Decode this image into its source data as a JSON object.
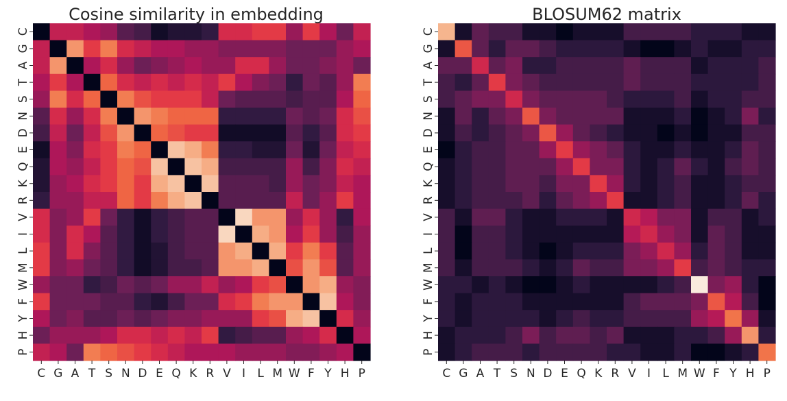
{
  "chart_data": [
    {
      "type": "heatmap",
      "title": "Cosine similarity in embedding",
      "xlabel": "",
      "ylabel": "",
      "x_labels": [
        "C",
        "G",
        "A",
        "T",
        "S",
        "N",
        "D",
        "E",
        "Q",
        "K",
        "R",
        "V",
        "I",
        "L",
        "M",
        "W",
        "F",
        "Y",
        "H",
        "P"
      ],
      "y_labels": [
        "C",
        "G",
        "A",
        "T",
        "S",
        "N",
        "D",
        "E",
        "Q",
        "K",
        "R",
        "V",
        "I",
        "L",
        "M",
        "W",
        "F",
        "Y",
        "H",
        "P"
      ],
      "colormap": "rocket",
      "color_range": [
        0,
        1
      ],
      "values": [
        [
          0.0,
          0.5,
          0.5,
          0.45,
          0.4,
          0.25,
          0.2,
          0.05,
          0.1,
          0.1,
          0.15,
          0.55,
          0.55,
          0.6,
          0.6,
          0.4,
          0.6,
          0.45,
          0.3,
          0.5
        ],
        [
          0.5,
          0.0,
          0.8,
          0.6,
          0.75,
          0.55,
          0.5,
          0.45,
          0.45,
          0.4,
          0.4,
          0.35,
          0.35,
          0.35,
          0.35,
          0.3,
          0.3,
          0.3,
          0.4,
          0.45
        ],
        [
          0.5,
          0.8,
          0.0,
          0.45,
          0.55,
          0.4,
          0.3,
          0.35,
          0.4,
          0.45,
          0.4,
          0.4,
          0.55,
          0.55,
          0.4,
          0.3,
          0.3,
          0.35,
          0.4,
          0.3
        ],
        [
          0.45,
          0.6,
          0.45,
          0.0,
          0.7,
          0.55,
          0.5,
          0.55,
          0.5,
          0.55,
          0.5,
          0.6,
          0.45,
          0.35,
          0.3,
          0.15,
          0.3,
          0.25,
          0.4,
          0.75
        ],
        [
          0.4,
          0.75,
          0.55,
          0.7,
          0.0,
          0.75,
          0.65,
          0.6,
          0.6,
          0.6,
          0.5,
          0.3,
          0.25,
          0.25,
          0.25,
          0.2,
          0.25,
          0.25,
          0.45,
          0.7
        ],
        [
          0.25,
          0.55,
          0.4,
          0.55,
          0.75,
          0.0,
          0.8,
          0.75,
          0.7,
          0.7,
          0.7,
          0.15,
          0.15,
          0.15,
          0.15,
          0.3,
          0.25,
          0.3,
          0.55,
          0.65
        ],
        [
          0.2,
          0.5,
          0.3,
          0.5,
          0.65,
          0.8,
          0.0,
          0.7,
          0.65,
          0.6,
          0.6,
          0.05,
          0.05,
          0.05,
          0.05,
          0.25,
          0.15,
          0.25,
          0.55,
          0.6
        ],
        [
          0.05,
          0.45,
          0.35,
          0.55,
          0.6,
          0.75,
          0.7,
          0.0,
          0.9,
          0.85,
          0.75,
          0.15,
          0.15,
          0.1,
          0.1,
          0.3,
          0.1,
          0.3,
          0.5,
          0.55
        ],
        [
          0.1,
          0.45,
          0.4,
          0.5,
          0.6,
          0.7,
          0.65,
          0.9,
          0.0,
          0.9,
          0.85,
          0.2,
          0.2,
          0.2,
          0.2,
          0.4,
          0.2,
          0.35,
          0.55,
          0.5
        ],
        [
          0.1,
          0.4,
          0.45,
          0.55,
          0.6,
          0.7,
          0.6,
          0.85,
          0.9,
          0.0,
          0.9,
          0.25,
          0.25,
          0.25,
          0.2,
          0.4,
          0.3,
          0.35,
          0.5,
          0.45
        ],
        [
          0.15,
          0.4,
          0.4,
          0.5,
          0.5,
          0.7,
          0.6,
          0.75,
          0.85,
          0.9,
          0.0,
          0.25,
          0.25,
          0.25,
          0.25,
          0.5,
          0.3,
          0.4,
          0.6,
          0.45
        ],
        [
          0.55,
          0.35,
          0.4,
          0.6,
          0.3,
          0.15,
          0.05,
          0.15,
          0.2,
          0.25,
          0.25,
          0.0,
          0.95,
          0.8,
          0.8,
          0.4,
          0.55,
          0.4,
          0.15,
          0.45
        ],
        [
          0.55,
          0.35,
          0.55,
          0.45,
          0.25,
          0.15,
          0.05,
          0.15,
          0.2,
          0.25,
          0.25,
          0.95,
          0.0,
          0.85,
          0.8,
          0.45,
          0.6,
          0.4,
          0.2,
          0.4
        ],
        [
          0.6,
          0.35,
          0.55,
          0.35,
          0.25,
          0.15,
          0.05,
          0.1,
          0.2,
          0.25,
          0.25,
          0.8,
          0.85,
          0.0,
          0.85,
          0.6,
          0.75,
          0.6,
          0.25,
          0.4
        ],
        [
          0.6,
          0.35,
          0.4,
          0.3,
          0.25,
          0.15,
          0.05,
          0.1,
          0.2,
          0.2,
          0.25,
          0.8,
          0.8,
          0.85,
          0.0,
          0.65,
          0.8,
          0.65,
          0.25,
          0.4
        ],
        [
          0.4,
          0.3,
          0.3,
          0.15,
          0.2,
          0.3,
          0.25,
          0.3,
          0.4,
          0.4,
          0.5,
          0.4,
          0.45,
          0.6,
          0.65,
          0.0,
          0.8,
          0.85,
          0.4,
          0.35
        ],
        [
          0.6,
          0.3,
          0.3,
          0.3,
          0.25,
          0.25,
          0.15,
          0.1,
          0.2,
          0.3,
          0.3,
          0.55,
          0.6,
          0.75,
          0.8,
          0.8,
          0.0,
          0.9,
          0.45,
          0.35
        ],
        [
          0.45,
          0.3,
          0.35,
          0.25,
          0.25,
          0.3,
          0.25,
          0.3,
          0.35,
          0.35,
          0.4,
          0.4,
          0.4,
          0.6,
          0.65,
          0.85,
          0.9,
          0.0,
          0.55,
          0.4
        ],
        [
          0.3,
          0.4,
          0.4,
          0.4,
          0.45,
          0.55,
          0.55,
          0.5,
          0.55,
          0.5,
          0.6,
          0.15,
          0.2,
          0.25,
          0.25,
          0.4,
          0.45,
          0.55,
          0.0,
          0.45
        ],
        [
          0.5,
          0.45,
          0.3,
          0.75,
          0.7,
          0.65,
          0.6,
          0.55,
          0.5,
          0.45,
          0.45,
          0.45,
          0.4,
          0.4,
          0.4,
          0.35,
          0.35,
          0.4,
          0.45,
          0.0
        ]
      ]
    },
    {
      "type": "heatmap",
      "title": "BLOSUM62 matrix",
      "xlabel": "",
      "ylabel": "",
      "x_labels": [
        "C",
        "G",
        "A",
        "T",
        "S",
        "N",
        "D",
        "E",
        "Q",
        "K",
        "R",
        "V",
        "I",
        "L",
        "M",
        "W",
        "F",
        "Y",
        "H",
        "P"
      ],
      "y_labels": [
        "C",
        "G",
        "A",
        "T",
        "S",
        "N",
        "D",
        "E",
        "Q",
        "K",
        "R",
        "V",
        "I",
        "L",
        "M",
        "W",
        "F",
        "Y",
        "H",
        "P"
      ],
      "colormap": "rocket",
      "color_range": [
        -4,
        11
      ],
      "values": [
        [
          9,
          -3,
          0,
          -1,
          -1,
          -3,
          -3,
          -4,
          -3,
          -3,
          -3,
          -1,
          -1,
          -1,
          -1,
          -2,
          -2,
          -2,
          -3,
          -3
        ],
        [
          -3,
          6,
          0,
          -2,
          0,
          0,
          -1,
          -2,
          -2,
          -2,
          -2,
          -3,
          -4,
          -4,
          -3,
          -2,
          -3,
          -3,
          -2,
          -2
        ],
        [
          0,
          0,
          4,
          0,
          1,
          -2,
          -2,
          -1,
          -1,
          -1,
          -1,
          0,
          -1,
          -1,
          -1,
          -3,
          -2,
          -2,
          -2,
          -1
        ],
        [
          -1,
          -2,
          0,
          5,
          1,
          0,
          -1,
          -1,
          -1,
          -1,
          -1,
          0,
          -1,
          -1,
          -1,
          -2,
          -2,
          -2,
          -2,
          -1
        ],
        [
          -1,
          0,
          1,
          1,
          4,
          1,
          0,
          0,
          0,
          0,
          -1,
          -2,
          -2,
          -2,
          -1,
          -3,
          -2,
          -2,
          -1,
          -1
        ],
        [
          -3,
          0,
          -2,
          0,
          1,
          6,
          1,
          0,
          0,
          0,
          0,
          -3,
          -3,
          -3,
          -2,
          -4,
          -3,
          -2,
          1,
          -2
        ],
        [
          -3,
          -1,
          -2,
          -1,
          0,
          1,
          6,
          2,
          0,
          -1,
          -2,
          -3,
          -3,
          -4,
          -3,
          -4,
          -3,
          -3,
          -1,
          -1
        ],
        [
          -4,
          -2,
          -1,
          -1,
          0,
          0,
          2,
          5,
          2,
          1,
          0,
          -2,
          -3,
          -3,
          -2,
          -3,
          -3,
          -2,
          0,
          -1
        ],
        [
          -3,
          -2,
          -1,
          -1,
          0,
          0,
          0,
          2,
          5,
          1,
          1,
          -2,
          -3,
          -2,
          0,
          -2,
          -3,
          -1,
          0,
          -1
        ],
        [
          -3,
          -2,
          -1,
          -1,
          0,
          0,
          -1,
          1,
          1,
          5,
          2,
          -2,
          -3,
          -2,
          -1,
          -3,
          -3,
          -2,
          -1,
          -1
        ],
        [
          -3,
          -2,
          -1,
          -1,
          -1,
          0,
          -2,
          0,
          1,
          2,
          5,
          -3,
          -3,
          -2,
          -1,
          -3,
          -3,
          -2,
          0,
          -2
        ],
        [
          -1,
          -3,
          0,
          0,
          -2,
          -3,
          -3,
          -2,
          -2,
          -2,
          -3,
          4,
          3,
          1,
          1,
          -3,
          -1,
          -1,
          -3,
          -2
        ],
        [
          -1,
          -4,
          -1,
          -1,
          -2,
          -3,
          -3,
          -3,
          -3,
          -3,
          -3,
          3,
          4,
          2,
          1,
          -3,
          0,
          -1,
          -3,
          -3
        ],
        [
          -1,
          -4,
          -1,
          -1,
          -2,
          -3,
          -4,
          -3,
          -2,
          -2,
          -2,
          1,
          2,
          4,
          2,
          -2,
          0,
          -1,
          -3,
          -3
        ],
        [
          -1,
          -3,
          -1,
          -1,
          -1,
          -2,
          -3,
          -2,
          0,
          -1,
          -1,
          1,
          1,
          2,
          5,
          -1,
          0,
          -1,
          -2,
          -2
        ],
        [
          -2,
          -2,
          -3,
          -2,
          -3,
          -4,
          -4,
          -3,
          -2,
          -3,
          -3,
          -3,
          -3,
          -2,
          -1,
          11,
          1,
          2,
          -2,
          -4
        ],
        [
          -2,
          -3,
          -2,
          -2,
          -2,
          -3,
          -3,
          -3,
          -3,
          -3,
          -3,
          -1,
          0,
          0,
          0,
          1,
          6,
          3,
          -1,
          -4
        ],
        [
          -2,
          -3,
          -2,
          -2,
          -2,
          -2,
          -3,
          -2,
          -1,
          -2,
          -2,
          -1,
          -1,
          -1,
          -1,
          2,
          3,
          7,
          2,
          -3
        ],
        [
          -3,
          -2,
          -2,
          -2,
          -1,
          1,
          -1,
          0,
          0,
          -1,
          0,
          -3,
          -3,
          -3,
          -2,
          -2,
          -1,
          2,
          8,
          -2
        ],
        [
          -3,
          -2,
          -1,
          -1,
          -1,
          -2,
          -1,
          -1,
          -1,
          -1,
          -2,
          -2,
          -3,
          -3,
          -2,
          -4,
          -4,
          -3,
          -2,
          7
        ]
      ]
    }
  ]
}
